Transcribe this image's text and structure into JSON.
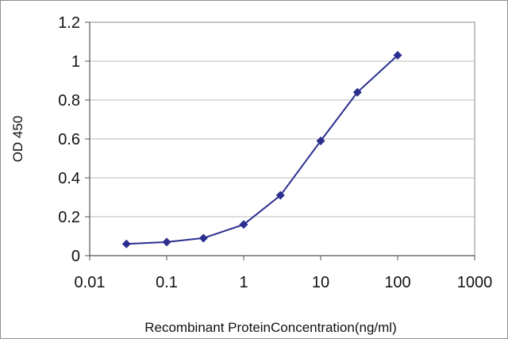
{
  "chart_data": {
    "type": "line",
    "x_scale": "log",
    "xlabel": "Recombinant ProteinConcentration(ng/ml)",
    "ylabel": "OD 450",
    "xlim": [
      0.01,
      1000
    ],
    "ylim": [
      0,
      1.2
    ],
    "x_ticks": [
      0.01,
      0.1,
      1,
      10,
      100,
      1000
    ],
    "x_tick_labels": [
      "0.01",
      "0.1",
      "1",
      "10",
      "100",
      "1000"
    ],
    "y_ticks": [
      0,
      0.2,
      0.4,
      0.6,
      0.8,
      1,
      1.2
    ],
    "y_tick_labels": [
      "0",
      "0.2",
      "0.4",
      "0.6",
      "0.8",
      "1",
      "1.2"
    ],
    "grid": "horizontal",
    "legend": "none",
    "series": [
      {
        "x": [
          0.03,
          0.1,
          0.3,
          1,
          3,
          10,
          30,
          100
        ],
        "y": [
          0.06,
          0.07,
          0.09,
          0.16,
          0.31,
          0.59,
          0.84,
          1.03
        ],
        "color": "#2b2f8f"
      }
    ]
  }
}
